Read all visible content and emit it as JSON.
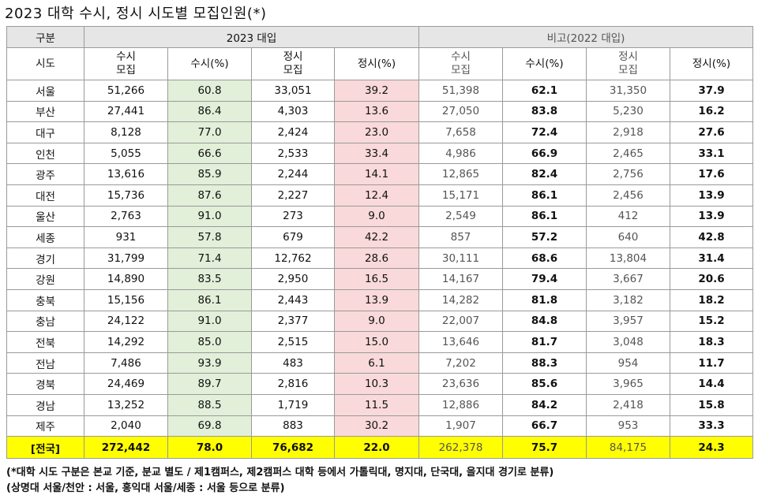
{
  "title": "2023 대학 수시, 정시 시도별 모집인원(*)",
  "header": {
    "group_label": "구분",
    "current_label": "2023 대입",
    "compare_label": "비고(2022 대입)",
    "region_label": "시도",
    "col_susi_line1": "수시",
    "col_susi_line2": "모집",
    "col_susi_pct": "수시(%)",
    "col_jeongsi_line1": "정시",
    "col_jeongsi_line2": "모집",
    "col_jeongsi_pct": "정시(%)"
  },
  "rows": [
    [
      "서울",
      "51,266",
      "60.8",
      "33,051",
      "39.2",
      "51,398",
      "62.1",
      "31,350",
      "37.9"
    ],
    [
      "부산",
      "27,441",
      "86.4",
      "4,303",
      "13.6",
      "27,050",
      "83.8",
      "5,230",
      "16.2"
    ],
    [
      "대구",
      "8,128",
      "77.0",
      "2,424",
      "23.0",
      "7,658",
      "72.4",
      "2,918",
      "27.6"
    ],
    [
      "인천",
      "5,055",
      "66.6",
      "2,533",
      "33.4",
      "4,986",
      "66.9",
      "2,465",
      "33.1"
    ],
    [
      "광주",
      "13,616",
      "85.9",
      "2,244",
      "14.1",
      "12,865",
      "82.4",
      "2,756",
      "17.6"
    ],
    [
      "대전",
      "15,736",
      "87.6",
      "2,227",
      "12.4",
      "15,171",
      "86.1",
      "2,456",
      "13.9"
    ],
    [
      "울산",
      "2,763",
      "91.0",
      "273",
      "9.0",
      "2,549",
      "86.1",
      "412",
      "13.9"
    ],
    [
      "세종",
      "931",
      "57.8",
      "679",
      "42.2",
      "857",
      "57.2",
      "640",
      "42.8"
    ],
    [
      "경기",
      "31,799",
      "71.4",
      "12,762",
      "28.6",
      "30,111",
      "68.6",
      "13,804",
      "31.4"
    ],
    [
      "강원",
      "14,890",
      "83.5",
      "2,950",
      "16.5",
      "14,167",
      "79.4",
      "3,667",
      "20.6"
    ],
    [
      "충북",
      "15,156",
      "86.1",
      "2,443",
      "13.9",
      "14,282",
      "81.8",
      "3,182",
      "18.2"
    ],
    [
      "충남",
      "24,122",
      "91.0",
      "2,377",
      "9.0",
      "22,007",
      "84.8",
      "3,957",
      "15.2"
    ],
    [
      "전북",
      "14,292",
      "85.0",
      "2,515",
      "15.0",
      "13,646",
      "81.7",
      "3,048",
      "18.3"
    ],
    [
      "전남",
      "7,486",
      "93.9",
      "483",
      "6.1",
      "7,202",
      "88.3",
      "954",
      "11.7"
    ],
    [
      "경북",
      "24,469",
      "89.7",
      "2,816",
      "10.3",
      "23,636",
      "85.6",
      "3,965",
      "14.4"
    ],
    [
      "경남",
      "13,252",
      "88.5",
      "1,719",
      "11.5",
      "12,886",
      "84.2",
      "2,418",
      "15.8"
    ],
    [
      "제주",
      "2,040",
      "69.8",
      "883",
      "30.2",
      "1,907",
      "66.7",
      "953",
      "33.3"
    ]
  ],
  "total": [
    "[전국]",
    "272,442",
    "78.0",
    "76,682",
    "22.0",
    "262,378",
    "75.7",
    "84,175",
    "24.3"
  ],
  "notes": [
    "(*대학 시도 구분은 본교 기준, 분교 별도 / 제1캠퍼스, 제2캠퍼스 대학 등에서 가톨릭대, 명지대, 단국대, 을지대 경기로 분류)",
    "(상명대 서울/천안 : 서울, 홍익대 서울/세종 : 서울 등으로 분류)"
  ],
  "colors": {
    "green_cell": "#e2efd9",
    "pink_cell": "#f9d9d9",
    "total_highlight": "#ffff00",
    "header_fill": "#e6e6e6"
  }
}
